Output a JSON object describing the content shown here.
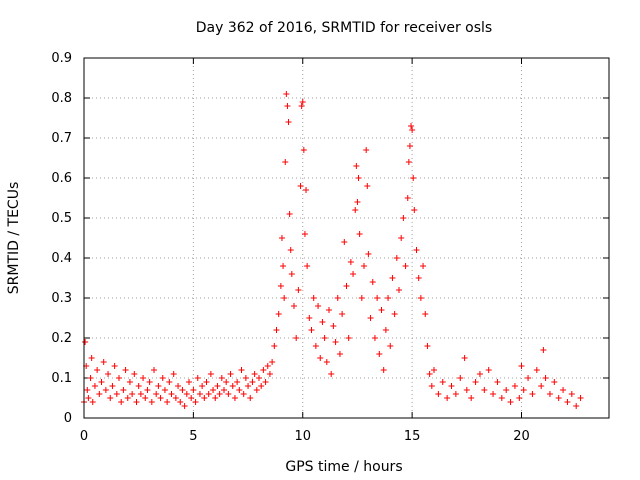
{
  "chart_data": {
    "type": "scatter",
    "title": "Day 362 of 2016, SRMTID for receiver osls",
    "xlabel": "GPS time / hours",
    "ylabel": "SRMTID / TECUs",
    "xlim": [
      0,
      24
    ],
    "ylim": [
      0,
      0.9
    ],
    "xticks": [
      0,
      5,
      10,
      15,
      20
    ],
    "xtick_labels": [
      "0",
      "5",
      "10",
      "15",
      "20"
    ],
    "yticks": [
      0,
      0.1,
      0.2,
      0.3,
      0.4,
      0.5,
      0.6,
      0.7,
      0.8,
      0.9
    ],
    "ytick_labels": [
      "0",
      "0.1",
      "0.2",
      "0.3",
      "0.4",
      "0.5",
      "0.6",
      "0.7",
      "0.8",
      "0.9"
    ],
    "grid": true,
    "marker": "+",
    "color": "#ff0000",
    "series": [
      {
        "name": "SRMTID",
        "points": [
          [
            0.0,
            0.04
          ],
          [
            0.05,
            0.19
          ],
          [
            0.1,
            0.13
          ],
          [
            0.15,
            0.07
          ],
          [
            0.2,
            0.05
          ],
          [
            0.3,
            0.1
          ],
          [
            0.35,
            0.15
          ],
          [
            0.4,
            0.04
          ],
          [
            0.5,
            0.08
          ],
          [
            0.6,
            0.12
          ],
          [
            0.7,
            0.06
          ],
          [
            0.8,
            0.09
          ],
          [
            0.9,
            0.14
          ],
          [
            1.0,
            0.07
          ],
          [
            1.1,
            0.11
          ],
          [
            1.2,
            0.05
          ],
          [
            1.3,
            0.08
          ],
          [
            1.4,
            0.13
          ],
          [
            1.5,
            0.06
          ],
          [
            1.6,
            0.1
          ],
          [
            1.7,
            0.04
          ],
          [
            1.8,
            0.07
          ],
          [
            1.9,
            0.12
          ],
          [
            2.0,
            0.05
          ],
          [
            2.1,
            0.09
          ],
          [
            2.2,
            0.06
          ],
          [
            2.3,
            0.11
          ],
          [
            2.4,
            0.04
          ],
          [
            2.5,
            0.08
          ],
          [
            2.6,
            0.06
          ],
          [
            2.7,
            0.1
          ],
          [
            2.8,
            0.05
          ],
          [
            2.9,
            0.07
          ],
          [
            3.0,
            0.09
          ],
          [
            3.1,
            0.04
          ],
          [
            3.2,
            0.12
          ],
          [
            3.3,
            0.06
          ],
          [
            3.4,
            0.08
          ],
          [
            3.5,
            0.05
          ],
          [
            3.6,
            0.1
          ],
          [
            3.7,
            0.07
          ],
          [
            3.8,
            0.04
          ],
          [
            3.9,
            0.09
          ],
          [
            4.0,
            0.06
          ],
          [
            4.1,
            0.11
          ],
          [
            4.2,
            0.05
          ],
          [
            4.3,
            0.08
          ],
          [
            4.4,
            0.04
          ],
          [
            4.5,
            0.07
          ],
          [
            4.6,
            0.03
          ],
          [
            4.7,
            0.06
          ],
          [
            4.8,
            0.09
          ],
          [
            4.9,
            0.05
          ],
          [
            5.0,
            0.07
          ],
          [
            5.1,
            0.04
          ],
          [
            5.2,
            0.1
          ],
          [
            5.3,
            0.06
          ],
          [
            5.4,
            0.08
          ],
          [
            5.5,
            0.05
          ],
          [
            5.6,
            0.09
          ],
          [
            5.7,
            0.06
          ],
          [
            5.8,
            0.11
          ],
          [
            5.9,
            0.07
          ],
          [
            6.0,
            0.05
          ],
          [
            6.1,
            0.08
          ],
          [
            6.2,
            0.06
          ],
          [
            6.3,
            0.1
          ],
          [
            6.4,
            0.07
          ],
          [
            6.5,
            0.09
          ],
          [
            6.6,
            0.06
          ],
          [
            6.7,
            0.11
          ],
          [
            6.8,
            0.08
          ],
          [
            6.9,
            0.05
          ],
          [
            7.0,
            0.09
          ],
          [
            7.1,
            0.07
          ],
          [
            7.2,
            0.12
          ],
          [
            7.3,
            0.06
          ],
          [
            7.4,
            0.1
          ],
          [
            7.5,
            0.08
          ],
          [
            7.6,
            0.05
          ],
          [
            7.7,
            0.09
          ],
          [
            7.8,
            0.11
          ],
          [
            7.9,
            0.07
          ],
          [
            8.0,
            0.1
          ],
          [
            8.1,
            0.08
          ],
          [
            8.2,
            0.12
          ],
          [
            8.3,
            0.09
          ],
          [
            8.4,
            0.13
          ],
          [
            8.5,
            0.11
          ],
          [
            8.6,
            0.14
          ],
          [
            8.7,
            0.18
          ],
          [
            8.8,
            0.22
          ],
          [
            8.9,
            0.26
          ],
          [
            9.0,
            0.33
          ],
          [
            9.05,
            0.45
          ],
          [
            9.1,
            0.38
          ],
          [
            9.15,
            0.3
          ],
          [
            9.2,
            0.64
          ],
          [
            9.25,
            0.81
          ],
          [
            9.3,
            0.78
          ],
          [
            9.35,
            0.74
          ],
          [
            9.4,
            0.51
          ],
          [
            9.45,
            0.42
          ],
          [
            9.5,
            0.36
          ],
          [
            9.6,
            0.28
          ],
          [
            9.7,
            0.2
          ],
          [
            9.8,
            0.32
          ],
          [
            9.9,
            0.58
          ],
          [
            9.95,
            0.78
          ],
          [
            10.0,
            0.79
          ],
          [
            10.05,
            0.67
          ],
          [
            10.1,
            0.46
          ],
          [
            10.15,
            0.57
          ],
          [
            10.2,
            0.38
          ],
          [
            10.3,
            0.25
          ],
          [
            10.4,
            0.22
          ],
          [
            10.5,
            0.3
          ],
          [
            10.6,
            0.18
          ],
          [
            10.7,
            0.28
          ],
          [
            10.8,
            0.15
          ],
          [
            10.9,
            0.24
          ],
          [
            11.0,
            0.2
          ],
          [
            11.1,
            0.14
          ],
          [
            11.2,
            0.27
          ],
          [
            11.3,
            0.11
          ],
          [
            11.4,
            0.23
          ],
          [
            11.5,
            0.19
          ],
          [
            11.6,
            0.3
          ],
          [
            11.7,
            0.16
          ],
          [
            11.8,
            0.26
          ],
          [
            11.9,
            0.44
          ],
          [
            12.0,
            0.33
          ],
          [
            12.1,
            0.2
          ],
          [
            12.2,
            0.39
          ],
          [
            12.3,
            0.36
          ],
          [
            12.4,
            0.52
          ],
          [
            12.45,
            0.63
          ],
          [
            12.5,
            0.54
          ],
          [
            12.55,
            0.6
          ],
          [
            12.6,
            0.46
          ],
          [
            12.7,
            0.3
          ],
          [
            12.8,
            0.38
          ],
          [
            12.9,
            0.67
          ],
          [
            12.95,
            0.58
          ],
          [
            13.0,
            0.41
          ],
          [
            13.1,
            0.25
          ],
          [
            13.2,
            0.34
          ],
          [
            13.3,
            0.2
          ],
          [
            13.4,
            0.3
          ],
          [
            13.5,
            0.16
          ],
          [
            13.6,
            0.27
          ],
          [
            13.7,
            0.12
          ],
          [
            13.8,
            0.22
          ],
          [
            13.9,
            0.3
          ],
          [
            14.0,
            0.18
          ],
          [
            14.1,
            0.35
          ],
          [
            14.2,
            0.26
          ],
          [
            14.3,
            0.4
          ],
          [
            14.4,
            0.32
          ],
          [
            14.5,
            0.45
          ],
          [
            14.6,
            0.5
          ],
          [
            14.7,
            0.38
          ],
          [
            14.8,
            0.55
          ],
          [
            14.85,
            0.64
          ],
          [
            14.9,
            0.68
          ],
          [
            14.95,
            0.73
          ],
          [
            15.0,
            0.72
          ],
          [
            15.05,
            0.6
          ],
          [
            15.1,
            0.52
          ],
          [
            15.2,
            0.42
          ],
          [
            15.3,
            0.35
          ],
          [
            15.4,
            0.3
          ],
          [
            15.5,
            0.38
          ],
          [
            15.6,
            0.26
          ],
          [
            15.7,
            0.18
          ],
          [
            15.8,
            0.11
          ],
          [
            15.9,
            0.08
          ],
          [
            16.0,
            0.12
          ],
          [
            16.2,
            0.06
          ],
          [
            16.4,
            0.09
          ],
          [
            16.6,
            0.05
          ],
          [
            16.8,
            0.08
          ],
          [
            17.0,
            0.06
          ],
          [
            17.2,
            0.1
          ],
          [
            17.4,
            0.15
          ],
          [
            17.5,
            0.07
          ],
          [
            17.7,
            0.05
          ],
          [
            17.9,
            0.09
          ],
          [
            18.1,
            0.11
          ],
          [
            18.3,
            0.07
          ],
          [
            18.5,
            0.12
          ],
          [
            18.7,
            0.06
          ],
          [
            18.9,
            0.09
          ],
          [
            19.1,
            0.05
          ],
          [
            19.3,
            0.07
          ],
          [
            19.5,
            0.04
          ],
          [
            19.7,
            0.08
          ],
          [
            19.9,
            0.05
          ],
          [
            20.0,
            0.13
          ],
          [
            20.1,
            0.07
          ],
          [
            20.3,
            0.1
          ],
          [
            20.5,
            0.06
          ],
          [
            20.7,
            0.12
          ],
          [
            20.9,
            0.08
          ],
          [
            21.0,
            0.17
          ],
          [
            21.1,
            0.1
          ],
          [
            21.3,
            0.06
          ],
          [
            21.5,
            0.09
          ],
          [
            21.7,
            0.05
          ],
          [
            21.9,
            0.07
          ],
          [
            22.1,
            0.04
          ],
          [
            22.3,
            0.06
          ],
          [
            22.5,
            0.03
          ],
          [
            22.7,
            0.05
          ]
        ]
      }
    ]
  }
}
